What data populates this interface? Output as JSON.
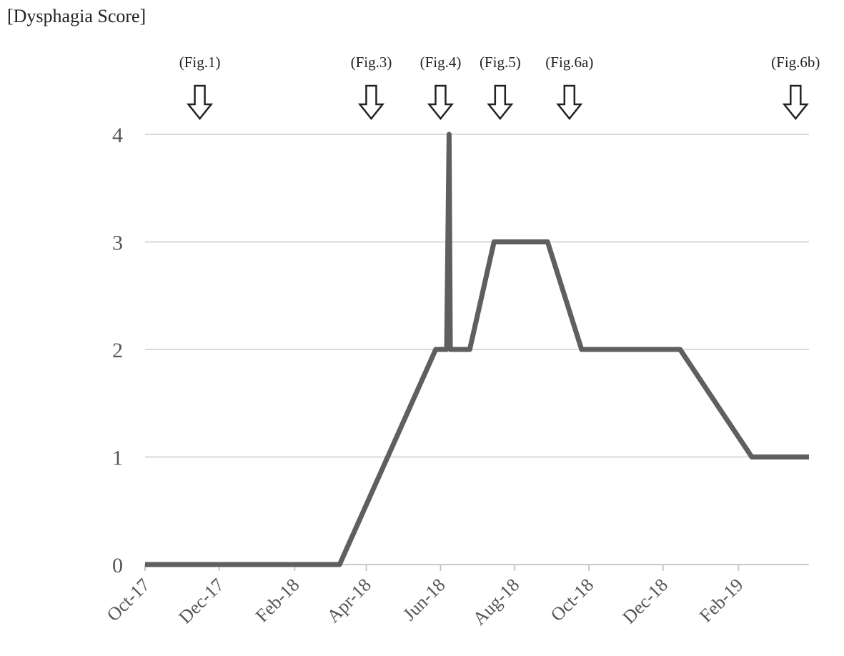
{
  "chart_data": {
    "type": "line",
    "title": "[Dysphagia Score]",
    "xlabel": "",
    "ylabel": "",
    "x_tick_labels": [
      "Oct-17",
      "Dec-17",
      "Feb-18",
      "Apr-18",
      "Jun-18",
      "Aug-18",
      "Oct-18",
      "Dec-18",
      "Feb-19"
    ],
    "x_range": [
      "2017-10-01",
      "2019-03-31"
    ],
    "ylim": [
      0,
      4
    ],
    "y_ticks": [
      0,
      1,
      2,
      3,
      4
    ],
    "grid": "horizontal",
    "line_color": "#5f5f5f",
    "grid_color": "#d9d9d9",
    "series": [
      {
        "points": [
          {
            "date": "2017-10-01",
            "y": 0
          },
          {
            "date": "2018-03-10",
            "y": 0
          },
          {
            "date": "2018-05-28",
            "y": 2
          },
          {
            "date": "2018-06-06",
            "y": 2
          },
          {
            "date": "2018-06-08",
            "y": 4
          },
          {
            "date": "2018-06-09",
            "y": 2
          },
          {
            "date": "2018-06-25",
            "y": 2
          },
          {
            "date": "2018-07-15",
            "y": 3
          },
          {
            "date": "2018-08-28",
            "y": 3
          },
          {
            "date": "2018-09-25",
            "y": 2
          },
          {
            "date": "2018-12-15",
            "y": 2
          },
          {
            "date": "2019-02-12",
            "y": 1
          },
          {
            "date": "2019-03-31",
            "y": 1
          }
        ]
      }
    ],
    "annotations": [
      {
        "label": "(Fig.1)",
        "date": "2017-11-15"
      },
      {
        "label": "(Fig.3)",
        "date": "2018-04-05"
      },
      {
        "label": "(Fig.4)",
        "date": "2018-06-01"
      },
      {
        "label": "(Fig.5)",
        "date": "2018-07-20"
      },
      {
        "label": "(Fig.6a)",
        "date": "2018-09-15"
      },
      {
        "label": "(Fig.6b)",
        "date": "2019-03-20"
      }
    ]
  }
}
